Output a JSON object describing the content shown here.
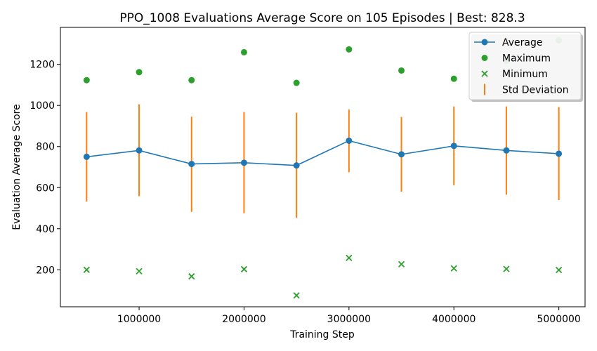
{
  "chart_data": {
    "type": "line",
    "title": "PPO_1008 Evaluations Average Score on 105 Episodes | Best: 828.3",
    "xlabel": "Training Step",
    "ylabel": "Evaluation Average Score",
    "xlim": [
      250000,
      5250000
    ],
    "ylim": [
      20,
      1380
    ],
    "x_ticks": [
      1000000,
      2000000,
      3000000,
      4000000,
      5000000
    ],
    "x_tick_labels": [
      "1000000",
      "2000000",
      "3000000",
      "4000000",
      "5000000"
    ],
    "y_ticks": [
      200,
      400,
      600,
      800,
      1000,
      1200
    ],
    "y_tick_labels": [
      "200",
      "400",
      "600",
      "800",
      "1000",
      "1200"
    ],
    "grid": false,
    "legend_position": "top-right",
    "x": [
      500000,
      1000000,
      1500000,
      2000000,
      2500000,
      3000000,
      3500000,
      4000000,
      4500000,
      5000000
    ],
    "series": [
      {
        "name": "Average",
        "marker": "circle-line",
        "color": "#1f77b4",
        "values": [
          750,
          781,
          715,
          721,
          708,
          828.3,
          762,
          803,
          781,
          765
        ]
      },
      {
        "name": "Maximum",
        "marker": "circle",
        "color": "#2ca02c",
        "values": [
          1123,
          1162,
          1123,
          1259,
          1110,
          1273,
          1170,
          1130,
          1217,
          1317
        ]
      },
      {
        "name": "Minimum",
        "marker": "x",
        "color": "#2ca02c",
        "values": [
          200,
          193,
          168,
          203,
          75,
          258,
          227,
          207,
          204,
          199
        ]
      },
      {
        "name": "Std Deviation",
        "marker": "errorbar",
        "color": "#ff7f0e",
        "low": [
          532,
          558,
          482,
          475,
          453,
          675,
          580,
          611,
          566,
          539
        ],
        "high": [
          968,
          1006,
          945,
          968,
          965,
          980,
          944,
          995,
          995,
          992
        ]
      }
    ]
  }
}
